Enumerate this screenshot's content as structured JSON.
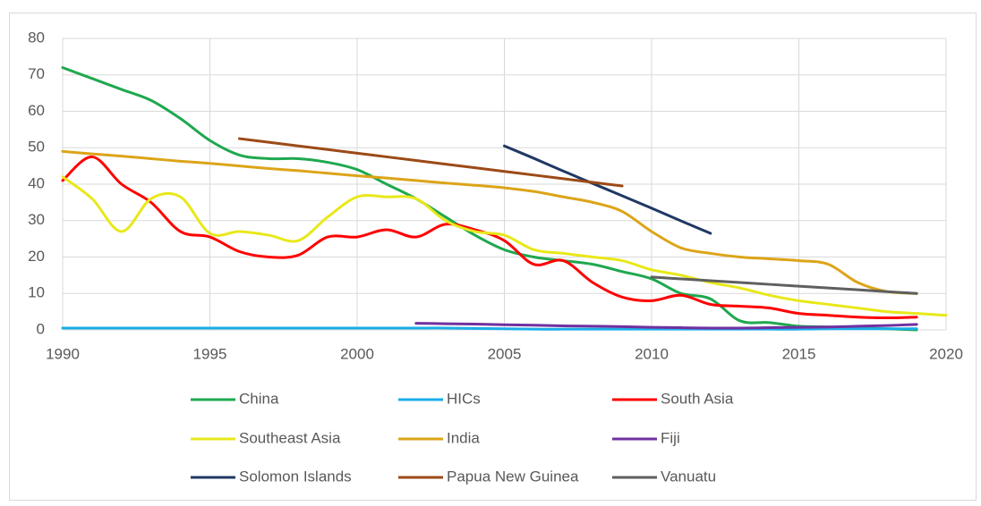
{
  "chart_data": {
    "type": "line",
    "x": [
      1990,
      1991,
      1992,
      1993,
      1994,
      1995,
      1996,
      1997,
      1998,
      1999,
      2000,
      2001,
      2002,
      2003,
      2004,
      2005,
      2006,
      2007,
      2008,
      2009,
      2010,
      2011,
      2012,
      2013,
      2014,
      2015,
      2016,
      2017,
      2018,
      2019,
      2020
    ],
    "xlim": [
      1990,
      2020
    ],
    "xticks": [
      1990,
      1995,
      2000,
      2005,
      2010,
      2015,
      2020
    ],
    "ylim": [
      0,
      80
    ],
    "yticks": [
      0,
      10,
      20,
      30,
      40,
      50,
      60,
      70,
      80
    ],
    "grid": true,
    "legend": "bottom",
    "series": [
      {
        "name": "China",
        "color": "#1fa84f",
        "values": [
          72,
          69,
          66,
          63,
          58,
          52,
          48,
          47,
          47,
          46,
          44,
          40,
          36,
          31,
          26,
          22,
          20,
          19,
          18,
          16,
          14,
          10,
          8.5,
          2.5,
          2,
          1,
          0.8,
          0.5,
          0.3,
          0,
          null
        ]
      },
      {
        "name": "HICs",
        "color": "#1aaee8",
        "values": [
          0.5,
          0.5,
          0.5,
          0.5,
          0.5,
          0.5,
          0.5,
          0.5,
          0.5,
          0.5,
          0.5,
          0.5,
          0.5,
          0.5,
          0.4,
          0.3,
          0.2,
          0.2,
          0.2,
          0.2,
          0.2,
          0.2,
          0.2,
          0.2,
          0.2,
          0.2,
          0.3,
          0.3,
          0.3,
          0.3,
          null
        ]
      },
      {
        "name": "South Asia",
        "color": "#ff0000",
        "values": [
          41,
          47.5,
          40,
          35,
          27,
          25.5,
          21.5,
          20,
          20.5,
          25.5,
          25.5,
          27.5,
          25.5,
          29,
          27.5,
          24.5,
          18,
          19,
          13,
          9,
          8,
          9.5,
          7,
          6.5,
          6,
          4.5,
          4,
          3.5,
          3.3,
          3.5,
          null
        ]
      },
      {
        "name": "Southeast Asia",
        "color": "#e8e81a",
        "values": [
          42,
          36,
          27,
          36,
          36.5,
          26.5,
          27,
          26,
          24.5,
          31,
          36.5,
          36.5,
          36,
          30,
          27,
          26,
          22,
          21,
          20,
          19,
          16.5,
          15,
          13,
          11.5,
          9.5,
          8,
          7,
          6,
          5,
          4.5,
          4
        ]
      },
      {
        "name": "India",
        "color": "#dca418",
        "values": [
          49,
          48.3,
          47.7,
          47,
          46.3,
          45.7,
          45,
          44.3,
          43.7,
          43,
          42.3,
          41.7,
          41,
          40.3,
          39.7,
          39,
          38,
          36.5,
          35,
          32.5,
          27,
          22.5,
          21,
          20,
          19.5,
          19,
          18,
          13,
          10.5,
          10,
          null
        ]
      },
      {
        "name": "Fiji",
        "color": "#7030a0",
        "values": [
          null,
          null,
          null,
          null,
          null,
          null,
          null,
          null,
          null,
          null,
          null,
          null,
          1.8,
          1.7,
          1.6,
          1.4,
          1.3,
          1.1,
          1,
          0.9,
          0.7,
          0.6,
          0.5,
          0.5,
          0.6,
          0.7,
          0.8,
          1,
          1.2,
          1.5,
          null
        ]
      },
      {
        "name": "Solomon Islands",
        "color": "#203864",
        "values": [
          null,
          null,
          null,
          null,
          null,
          null,
          null,
          null,
          null,
          null,
          null,
          null,
          null,
          null,
          null,
          50.5,
          47.1,
          43.6,
          40.2,
          36.8,
          33.4,
          29.9,
          26.5,
          null,
          null,
          null,
          null,
          null,
          null,
          null,
          null
        ]
      },
      {
        "name": "Papua New Guinea",
        "color": "#9c4a16",
        "values": [
          null,
          null,
          null,
          null,
          null,
          null,
          52.5,
          51.5,
          50.5,
          49.5,
          48.5,
          47.5,
          46.5,
          45.5,
          44.5,
          43.5,
          42.5,
          41.5,
          40.5,
          39.5,
          null,
          null,
          null,
          null,
          null,
          null,
          null,
          null,
          null,
          null,
          null
        ]
      },
      {
        "name": "Vanuatu",
        "color": "#5f5f5f",
        "values": [
          null,
          null,
          null,
          null,
          null,
          null,
          null,
          null,
          null,
          null,
          null,
          null,
          null,
          null,
          null,
          null,
          null,
          null,
          null,
          null,
          14.5,
          14,
          13.5,
          13,
          12.5,
          12,
          11.5,
          11,
          10.5,
          10,
          null
        ]
      }
    ]
  }
}
